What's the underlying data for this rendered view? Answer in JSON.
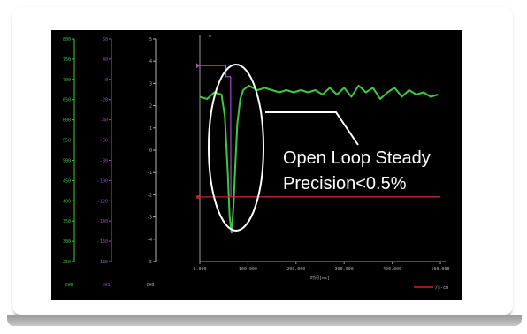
{
  "annotation": {
    "line1": "Open Loop Steady",
    "line2": "Precision<0.5%"
  },
  "legend": {
    "label": "/s-cm"
  },
  "colors": {
    "background": "#000000",
    "signal": "#3fc83f",
    "command": "#9f4fc8",
    "error": "#d01c2c",
    "axis": "#9a9a9a",
    "callout": "#ffffff"
  },
  "chart_data": {
    "type": "line",
    "xlabel": "时间[ms]",
    "xlim": [
      0,
      500
    ],
    "x_ticks": [
      "0.000",
      "100.000",
      "200.000",
      "300.000",
      "400.000",
      "500.000"
    ],
    "axes": [
      {
        "name": "green-axis",
        "color": "#3fc83f",
        "ticks": [
          "800",
          "750",
          "700",
          "650",
          "600",
          "550",
          "500",
          "450",
          "400",
          "350",
          "300",
          "250"
        ],
        "footer": "CH0"
      },
      {
        "name": "purple-axis",
        "color": "#9f4fc8",
        "ticks": [
          "60",
          "40",
          "0",
          "-20",
          "-40",
          "-60",
          "-80",
          "-100",
          "-120",
          "-140",
          "-160",
          "-180"
        ],
        "footer": "CH1"
      },
      {
        "name": "white-axis",
        "color": "#b0b0b0",
        "ticks": [
          "5",
          "4",
          "3",
          "2",
          "1",
          "0",
          "-1",
          "-2",
          "-3",
          "-4",
          "-5"
        ],
        "footer": "CH3"
      }
    ],
    "ylim": [
      -5,
      5
    ],
    "series": [
      {
        "color": "#3fc83f",
        "x": [
          0,
          15,
          30,
          45,
          52,
          58,
          62,
          66,
          70,
          74,
          78,
          84,
          90,
          96,
          102,
          110,
          120,
          135,
          150,
          165,
          180,
          195,
          210,
          225,
          240,
          255,
          270,
          285,
          300,
          315,
          330,
          345,
          360,
          375,
          390,
          405,
          420,
          435,
          450,
          465,
          480,
          495
        ],
        "y": [
          2.4,
          2.3,
          2.6,
          2.5,
          1.5,
          -1.0,
          -3.0,
          -3.7,
          -2.5,
          -0.5,
          1.2,
          2.3,
          2.7,
          2.8,
          2.9,
          2.8,
          2.7,
          2.8,
          2.7,
          2.6,
          2.7,
          2.6,
          2.7,
          2.6,
          2.7,
          2.5,
          2.8,
          2.5,
          2.8,
          2.4,
          2.9,
          2.6,
          2.8,
          2.3,
          2.6,
          2.8,
          2.4,
          2.7,
          2.5,
          2.6,
          2.4,
          2.5
        ]
      },
      {
        "color": "#9f4fc8",
        "x": [
          0,
          54,
          54.5,
          64,
          64.5,
          500
        ],
        "y": [
          3.8,
          3.8,
          3.3,
          3.3,
          -2.1,
          -2.1
        ]
      },
      {
        "color": "#d01c2c",
        "x": [
          0,
          500
        ],
        "y": [
          -2.1,
          -2.1
        ]
      }
    ]
  }
}
